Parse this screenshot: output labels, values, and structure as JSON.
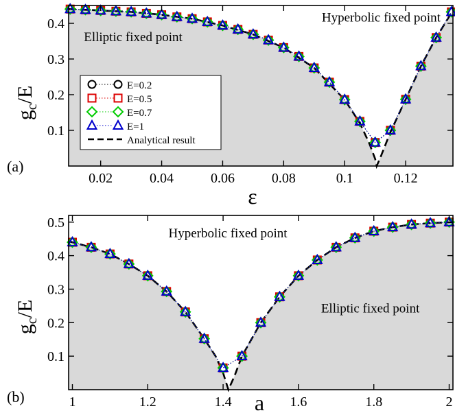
{
  "figure": {
    "background": "#ffffff",
    "region_fill": "#d9d9d9"
  },
  "chart_data": [
    {
      "type": "scatter",
      "panel_label": "(a)",
      "xlabel": "ε",
      "ylabel_main": "g",
      "ylabel_sub": "c",
      "ylabel_tail": "/E",
      "xlim": [
        0.0095,
        0.1355
      ],
      "ylim": [
        0.0,
        0.45
      ],
      "xticks": [
        0.02,
        0.04,
        0.06,
        0.08,
        0.1,
        0.12
      ],
      "xtick_labels": [
        "0.02",
        "0.04",
        "0.06",
        "0.08",
        "0.1",
        "0.12"
      ],
      "yticks": [
        0.1,
        0.2,
        0.3,
        0.4
      ],
      "ytick_labels": [
        "0.1",
        "0.2",
        "0.3",
        "0.4"
      ],
      "grid": false,
      "legend_position": "middle-left",
      "region_labels": [
        {
          "text": "Hyperbolic fixed point",
          "x": 0.0925,
          "y": 0.405
        },
        {
          "text": "Elliptic fixed point",
          "x": 0.0145,
          "y": 0.35
        }
      ],
      "x": [
        0.01,
        0.015,
        0.02,
        0.025,
        0.03,
        0.035,
        0.04,
        0.045,
        0.05,
        0.055,
        0.06,
        0.065,
        0.07,
        0.075,
        0.08,
        0.085,
        0.09,
        0.095,
        0.1,
        0.105,
        0.11,
        0.115,
        0.12,
        0.125,
        0.13,
        0.135
      ],
      "series": [
        {
          "name": "E=0.2",
          "marker": "circle",
          "color": "#000000",
          "values": [
            0.44,
            0.438,
            0.436,
            0.434,
            0.432,
            0.428,
            0.424,
            0.418,
            0.413,
            0.404,
            0.394,
            0.383,
            0.369,
            0.353,
            0.332,
            0.307,
            0.275,
            0.235,
            0.186,
            0.125,
            0.066,
            0.1,
            0.187,
            0.28,
            0.36,
            0.432
          ]
        },
        {
          "name": "E=0.5",
          "marker": "square",
          "color": "#dd0000",
          "values": [
            0.44,
            0.438,
            0.436,
            0.434,
            0.432,
            0.428,
            0.424,
            0.418,
            0.413,
            0.404,
            0.394,
            0.383,
            0.369,
            0.353,
            0.332,
            0.307,
            0.275,
            0.235,
            0.186,
            0.125,
            0.066,
            0.1,
            0.187,
            0.28,
            0.36,
            0.432
          ]
        },
        {
          "name": "E=0.7",
          "marker": "diamond",
          "color": "#00cc00",
          "values": [
            0.44,
            0.438,
            0.436,
            0.434,
            0.432,
            0.428,
            0.424,
            0.418,
            0.413,
            0.404,
            0.394,
            0.383,
            0.369,
            0.353,
            0.332,
            0.307,
            0.275,
            0.235,
            0.186,
            0.125,
            0.066,
            0.1,
            0.187,
            0.28,
            0.36,
            0.432
          ]
        },
        {
          "name": "E=1",
          "marker": "triangle",
          "color": "#0000cc",
          "values": [
            0.44,
            0.438,
            0.436,
            0.434,
            0.432,
            0.428,
            0.424,
            0.418,
            0.413,
            0.404,
            0.394,
            0.383,
            0.369,
            0.353,
            0.332,
            0.307,
            0.275,
            0.235,
            0.186,
            0.125,
            0.066,
            0.1,
            0.187,
            0.28,
            0.36,
            0.432
          ]
        }
      ],
      "analytical": {
        "name": "Analytical result",
        "color": "#000000",
        "x": [
          0.0095,
          0.02,
          0.03,
          0.04,
          0.05,
          0.06,
          0.07,
          0.08,
          0.09,
          0.1,
          0.105,
          0.108,
          0.11,
          0.1105,
          0.112,
          0.115,
          0.12,
          0.125,
          0.13,
          0.1355
        ],
        "y": [
          0.44,
          0.436,
          0.432,
          0.424,
          0.413,
          0.394,
          0.369,
          0.332,
          0.275,
          0.186,
          0.12,
          0.065,
          0.02,
          0.0,
          0.03,
          0.095,
          0.187,
          0.28,
          0.36,
          0.436
        ]
      }
    },
    {
      "type": "scatter",
      "panel_label": "(b)",
      "xlabel": "a",
      "ylabel_main": "g",
      "ylabel_sub": "c",
      "ylabel_tail": "/E",
      "xlim": [
        0.99,
        2.01
      ],
      "ylim": [
        0.0,
        0.52
      ],
      "xticks": [
        1,
        1.2,
        1.4,
        1.6,
        1.8,
        2
      ],
      "xtick_labels": [
        "1",
        "1.2",
        "1.4",
        "1.6",
        "1.8",
        "2"
      ],
      "yticks": [
        0.1,
        0.2,
        0.3,
        0.4,
        0.5
      ],
      "ytick_labels": [
        "0.1",
        "0.2",
        "0.3",
        "0.4",
        "0.5"
      ],
      "grid": false,
      "region_labels": [
        {
          "text": "Hyperbolic fixed point",
          "x": 1.255,
          "y": 0.455
        },
        {
          "text": "Elliptic fixed point",
          "x": 1.66,
          "y": 0.23
        }
      ],
      "x": [
        1.0,
        1.05,
        1.1,
        1.15,
        1.2,
        1.25,
        1.3,
        1.35,
        1.4,
        1.45,
        1.5,
        1.55,
        1.6,
        1.65,
        1.7,
        1.75,
        1.8,
        1.85,
        1.9,
        1.95,
        2.0
      ],
      "series": [
        {
          "name": "E=0.2",
          "marker": "circle",
          "color": "#000000",
          "values": [
            0.44,
            0.425,
            0.405,
            0.375,
            0.34,
            0.293,
            0.232,
            0.152,
            0.065,
            0.1,
            0.2,
            0.277,
            0.34,
            0.387,
            0.425,
            0.453,
            0.473,
            0.485,
            0.493,
            0.497,
            0.5
          ]
        },
        {
          "name": "E=0.5",
          "marker": "square",
          "color": "#dd0000",
          "values": [
            0.44,
            0.425,
            0.405,
            0.375,
            0.34,
            0.293,
            0.232,
            0.152,
            0.065,
            0.1,
            0.2,
            0.277,
            0.34,
            0.387,
            0.425,
            0.453,
            0.473,
            0.485,
            0.493,
            0.497,
            0.5
          ]
        },
        {
          "name": "E=0.7",
          "marker": "diamond",
          "color": "#00cc00",
          "values": [
            0.44,
            0.425,
            0.405,
            0.375,
            0.34,
            0.293,
            0.232,
            0.152,
            0.065,
            0.1,
            0.2,
            0.277,
            0.34,
            0.387,
            0.425,
            0.453,
            0.473,
            0.485,
            0.493,
            0.497,
            0.5
          ]
        },
        {
          "name": "E=1",
          "marker": "triangle",
          "color": "#0000cc",
          "values": [
            0.44,
            0.425,
            0.405,
            0.375,
            0.34,
            0.293,
            0.232,
            0.152,
            0.065,
            0.1,
            0.2,
            0.277,
            0.34,
            0.387,
            0.425,
            0.453,
            0.473,
            0.485,
            0.493,
            0.497,
            0.5
          ]
        }
      ],
      "analytical": {
        "name": "Analytical result",
        "color": "#000000",
        "x": [
          0.99,
          1.05,
          1.1,
          1.15,
          1.2,
          1.25,
          1.3,
          1.35,
          1.38,
          1.4,
          1.414,
          1.43,
          1.45,
          1.5,
          1.55,
          1.6,
          1.65,
          1.7,
          1.75,
          1.8,
          1.85,
          1.9,
          1.95,
          2.01
        ],
        "y": [
          0.443,
          0.425,
          0.405,
          0.375,
          0.34,
          0.293,
          0.232,
          0.152,
          0.1,
          0.05,
          0.0,
          0.04,
          0.1,
          0.2,
          0.277,
          0.34,
          0.387,
          0.425,
          0.453,
          0.473,
          0.485,
          0.493,
          0.497,
          0.5
        ]
      }
    }
  ]
}
